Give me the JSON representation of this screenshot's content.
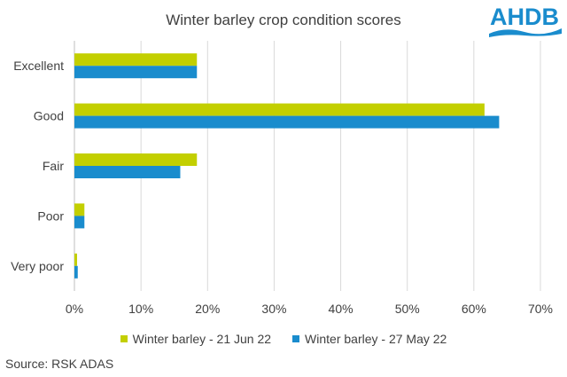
{
  "brand": {
    "logo_text": "AHDB",
    "logo_color": "#1a8ccd"
  },
  "chart_data": {
    "type": "bar",
    "orientation": "horizontal",
    "title": "Winter barley crop condition scores",
    "categories": [
      "Excellent",
      "Good",
      "Fair",
      "Poor",
      "Very poor"
    ],
    "series": [
      {
        "name": "Winter barley - 21 Jun 22",
        "color": "#c3cf00",
        "values": [
          18.4,
          61.6,
          18.4,
          1.5,
          0.4
        ]
      },
      {
        "name": "Winter barley - 27 May 22",
        "color": "#1a8ccd",
        "values": [
          18.4,
          63.8,
          15.9,
          1.5,
          0.5
        ]
      }
    ],
    "xlim": [
      0,
      70
    ],
    "xticks": [
      "0%",
      "10%",
      "20%",
      "30%",
      "40%",
      "50%",
      "60%",
      "70%"
    ],
    "grid": true,
    "legend_position": "bottom"
  },
  "source": "Source: RSK ADAS"
}
